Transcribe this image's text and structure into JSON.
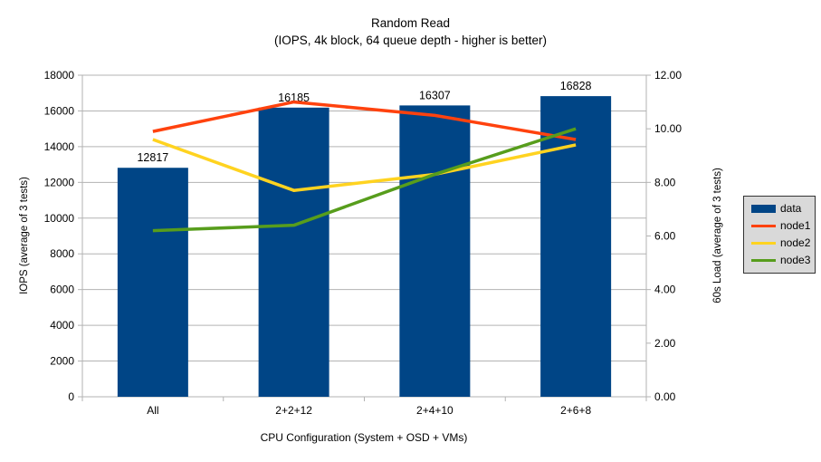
{
  "title": {
    "line1": "Random Read",
    "line2": "(IOPS, 4k block, 64 queue depth - higher is better)"
  },
  "chart_data": {
    "type": "combo-bar-line",
    "categories": [
      "All",
      "2+2+12",
      "2+4+10",
      "2+6+8"
    ],
    "xlabel": "CPU Configuration (System + OSD + VMs)",
    "left_axis": {
      "label": "IOPS (average of 3 tests)",
      "min": 0,
      "max": 18000,
      "step": 2000,
      "decimals": 0
    },
    "right_axis": {
      "label": "60s Load (average of 3 tests)",
      "min": 0,
      "max": 12,
      "step": 2,
      "decimals": 2
    },
    "grid": true,
    "legend_position": "right",
    "series": [
      {
        "name": "data",
        "type": "bar",
        "axis": "left",
        "color": "#004586",
        "values": [
          12817,
          16185,
          16307,
          16828
        ],
        "data_labels": [
          "12817",
          "16185",
          "16307",
          "16828"
        ]
      },
      {
        "name": "node1",
        "type": "line",
        "axis": "right",
        "color": "#ff420e",
        "values": [
          9.9,
          11.0,
          10.5,
          9.6
        ]
      },
      {
        "name": "node2",
        "type": "line",
        "axis": "right",
        "color": "#ffd320",
        "values": [
          9.6,
          7.7,
          8.3,
          9.4
        ]
      },
      {
        "name": "node3",
        "type": "line",
        "axis": "right",
        "color": "#579d1c",
        "values": [
          6.2,
          6.4,
          8.3,
          10.0
        ]
      }
    ],
    "colors": {
      "background": "#ffffff",
      "grid": "#b3b3b3",
      "axis": "#b3b3b3",
      "text": "#000000",
      "legend_bg": "#d9d9d9",
      "legend_border": "#333333"
    }
  }
}
